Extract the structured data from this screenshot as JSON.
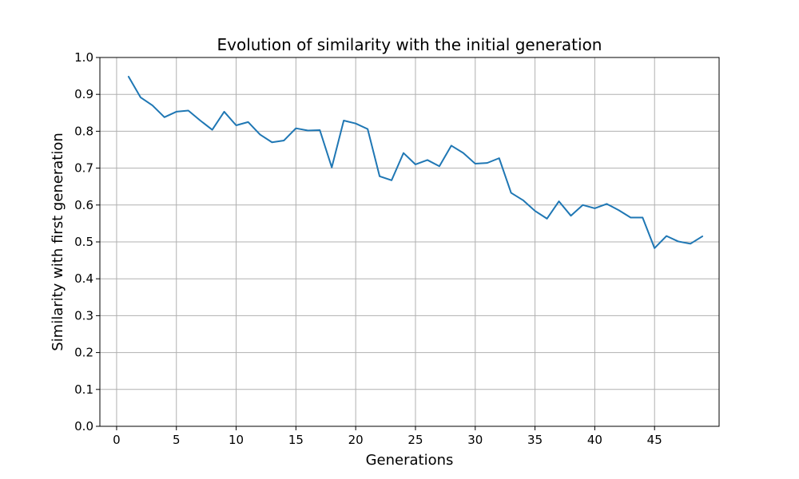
{
  "chart_data": {
    "type": "line",
    "title": "Evolution of similarity with the initial generation",
    "xlabel": "Generations",
    "ylabel": "Similarity with first generation",
    "xlim": [
      -1.4,
      50.4
    ],
    "ylim": [
      0.0,
      1.0
    ],
    "xticks": [
      0,
      5,
      10,
      15,
      20,
      25,
      30,
      35,
      40,
      45
    ],
    "yticks": [
      0.0,
      0.1,
      0.2,
      0.3,
      0.4,
      0.5,
      0.6,
      0.7,
      0.8,
      0.9,
      1.0
    ],
    "xtick_labels": [
      "0",
      "5",
      "10",
      "15",
      "20",
      "25",
      "30",
      "35",
      "40",
      "45"
    ],
    "ytick_labels": [
      "0.0",
      "0.1",
      "0.2",
      "0.3",
      "0.4",
      "0.5",
      "0.6",
      "0.7",
      "0.8",
      "0.9",
      "1.0"
    ],
    "grid": true,
    "series": [
      {
        "color": "#1f77b4",
        "x": [
          1,
          2,
          3,
          4,
          5,
          6,
          7,
          8,
          9,
          10,
          11,
          12,
          13,
          14,
          15,
          16,
          17,
          18,
          19,
          20,
          21,
          22,
          23,
          24,
          25,
          26,
          27,
          28,
          29,
          30,
          31,
          32,
          33,
          34,
          35,
          36,
          37,
          38,
          39,
          40,
          41,
          42,
          43,
          44,
          45,
          46,
          47,
          48,
          49
        ],
        "y": [
          0.948,
          0.892,
          0.87,
          0.838,
          0.853,
          0.856,
          0.829,
          0.804,
          0.853,
          0.816,
          0.825,
          0.791,
          0.77,
          0.775,
          0.808,
          0.802,
          0.803,
          0.702,
          0.829,
          0.821,
          0.806,
          0.678,
          0.667,
          0.741,
          0.71,
          0.722,
          0.705,
          0.761,
          0.741,
          0.712,
          0.714,
          0.727,
          0.633,
          0.613,
          0.584,
          0.563,
          0.61,
          0.571,
          0.6,
          0.591,
          0.603,
          0.586,
          0.566,
          0.566,
          0.483,
          0.516,
          0.501,
          0.495,
          0.515
        ]
      }
    ]
  }
}
